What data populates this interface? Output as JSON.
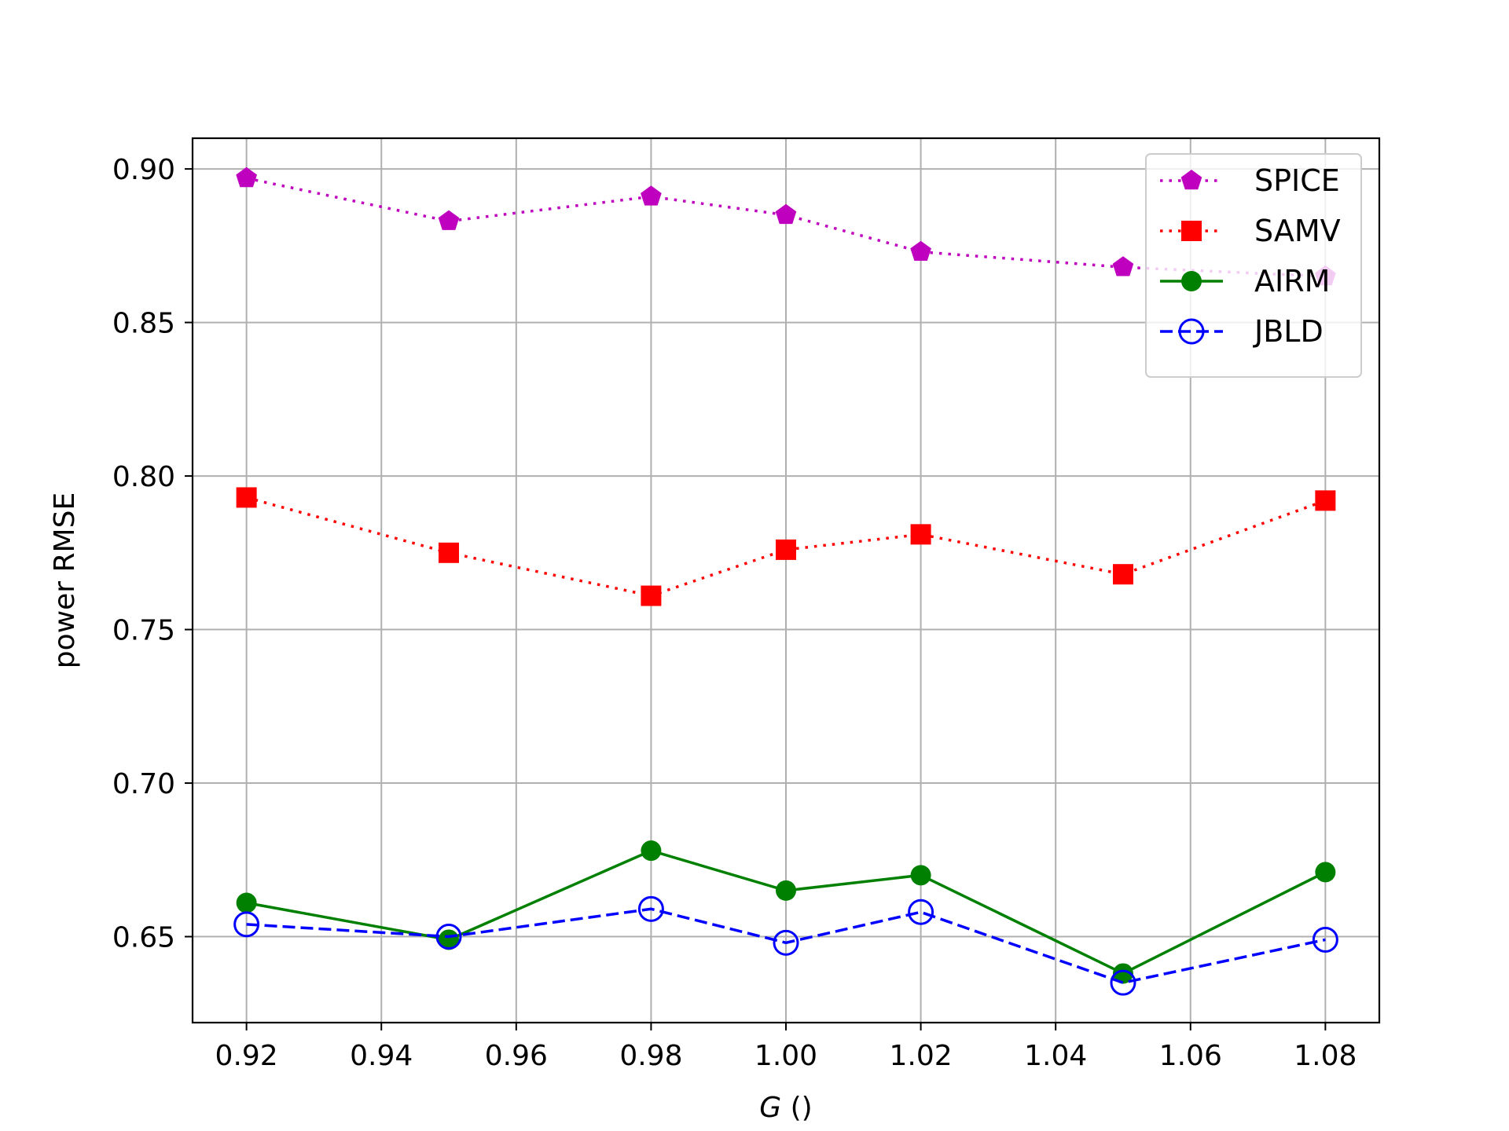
{
  "chart_data": {
    "type": "line",
    "title": "",
    "xlabel_symbol": "G",
    "xlabel_unit": " ()",
    "ylabel": "power RMSE",
    "x": [
      0.92,
      0.95,
      0.98,
      1.0,
      1.02,
      1.05,
      1.08
    ],
    "xlim": [
      0.912,
      1.088
    ],
    "ylim": [
      0.622,
      0.91
    ],
    "xticks": [
      0.92,
      0.94,
      0.96,
      0.98,
      1.0,
      1.02,
      1.04,
      1.06,
      1.08
    ],
    "xtick_labels": [
      "0.92",
      "0.94",
      "0.96",
      "0.98",
      "1.00",
      "1.02",
      "1.04",
      "1.06",
      "1.08"
    ],
    "yticks": [
      0.65,
      0.7,
      0.75,
      0.8,
      0.85,
      0.9
    ],
    "ytick_labels": [
      "0.65",
      "0.70",
      "0.75",
      "0.80",
      "0.85",
      "0.90"
    ],
    "grid": true,
    "legend_position": "upper-right",
    "series": [
      {
        "name": "SPICE",
        "color": "#bf00bf",
        "line": "dotted",
        "marker": "pentagon",
        "values": [
          0.897,
          0.883,
          0.891,
          0.885,
          0.873,
          0.868,
          0.865
        ]
      },
      {
        "name": "SAMV",
        "color": "#ff0000",
        "line": "dotted",
        "marker": "square",
        "values": [
          0.793,
          0.775,
          0.761,
          0.776,
          0.781,
          0.768,
          0.792
        ]
      },
      {
        "name": "AIRM",
        "color": "#008000",
        "line": "solid",
        "marker": "circle",
        "values": [
          0.661,
          0.649,
          0.678,
          0.665,
          0.67,
          0.638,
          0.671
        ]
      },
      {
        "name": "JBLD",
        "color": "#0000ff",
        "line": "dashed",
        "marker": "open-circle",
        "values": [
          0.654,
          0.65,
          0.659,
          0.648,
          0.658,
          0.635,
          0.649
        ]
      }
    ]
  }
}
